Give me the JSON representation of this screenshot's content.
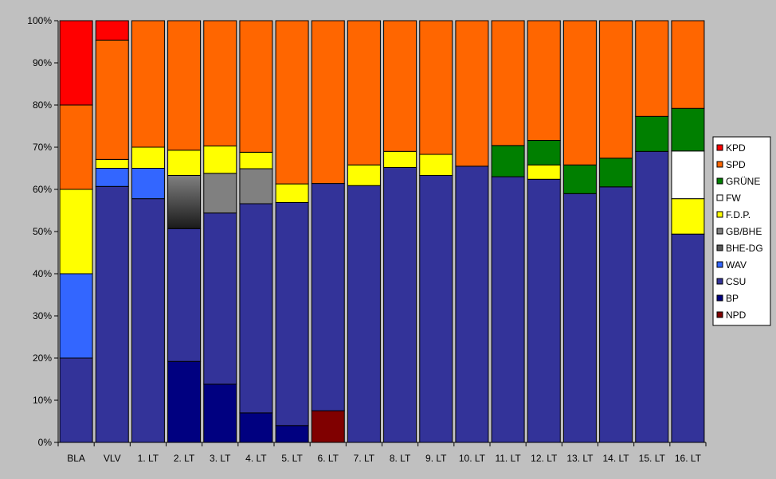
{
  "chart_data": {
    "type": "bar",
    "stacked": true,
    "normalized_percent": true,
    "title": "",
    "xlabel": "",
    "ylabel": "",
    "ylim": [
      0,
      100
    ],
    "yticks": [
      "0%",
      "10%",
      "20%",
      "30%",
      "40%",
      "50%",
      "60%",
      "70%",
      "80%",
      "90%",
      "100%"
    ],
    "grid": false,
    "legend_position": "right",
    "categories": [
      "BLA",
      "VLV",
      "1. LT",
      "2. LT",
      "3. LT",
      "4. LT",
      "5. LT",
      "6. LT",
      "7. LT",
      "8. LT",
      "9. LT",
      "10. LT",
      "11. LT",
      "12. LT",
      "13. LT",
      "14. LT",
      "15. LT",
      "16. LT"
    ],
    "series": [
      {
        "name": "NPD",
        "color": "#800000",
        "values": [
          0,
          0,
          0,
          0,
          0,
          0,
          0,
          7.5,
          0,
          0,
          0,
          0,
          0,
          0,
          0,
          0,
          0,
          0
        ]
      },
      {
        "name": "BP",
        "color": "#000080",
        "values": [
          0,
          0,
          0,
          19.2,
          13.8,
          7.0,
          4.0,
          0,
          0,
          0,
          0,
          0,
          0,
          0,
          0,
          0,
          0,
          0
        ]
      },
      {
        "name": "CSU",
        "color": "#333399",
        "values": [
          20.0,
          60.7,
          57.8,
          31.5,
          40.6,
          49.6,
          52.9,
          53.9,
          60.9,
          65.2,
          63.3,
          65.5,
          63.0,
          62.4,
          59.0,
          60.6,
          69.0,
          49.4
        ]
      },
      {
        "name": "WAV",
        "color": "#3366ff",
        "values": [
          20.0,
          4.3,
          7.2,
          0,
          0,
          0,
          0,
          0,
          0,
          0,
          0,
          0,
          0,
          0,
          0,
          0,
          0,
          0
        ]
      },
      {
        "name": "BHE-DG",
        "color": "#595959",
        "values": [
          0,
          0,
          0,
          12.6,
          0,
          0,
          0,
          0,
          0,
          0,
          0,
          0,
          0,
          0,
          0,
          0,
          0,
          0
        ]
      },
      {
        "name": "GB/BHE",
        "color": "#808080",
        "values": [
          0,
          0,
          0,
          0,
          9.4,
          8.3,
          0,
          0,
          0,
          0,
          0,
          0,
          0,
          0,
          0,
          0,
          0,
          0
        ]
      },
      {
        "name": "F.D.P.",
        "color": "#ffff00",
        "values": [
          20.0,
          2.1,
          5.0,
          6.0,
          6.5,
          3.9,
          4.4,
          0,
          4.9,
          3.8,
          5.0,
          0,
          0,
          3.4,
          0,
          0,
          0,
          8.4
        ]
      },
      {
        "name": "FW",
        "color": "#ffffff",
        "values": [
          0,
          0,
          0,
          0,
          0,
          0,
          0,
          0,
          0,
          0,
          0,
          0,
          0,
          0,
          0,
          0,
          0,
          11.3
        ]
      },
      {
        "name": "GRÜNE",
        "color": "#007f00",
        "values": [
          0,
          0,
          0,
          0,
          0,
          0,
          0,
          0,
          0,
          0,
          0,
          0,
          7.4,
          5.8,
          6.8,
          6.8,
          8.3,
          10.1
        ]
      },
      {
        "name": "SPD",
        "color": "#ff6600",
        "values": [
          20.0,
          28.3,
          30.0,
          30.7,
          29.7,
          31.2,
          38.7,
          38.6,
          34.2,
          31.0,
          31.7,
          34.5,
          29.6,
          28.4,
          34.2,
          32.6,
          22.7,
          20.8
        ]
      },
      {
        "name": "KPD",
        "color": "#ff0000",
        "values": [
          20.0,
          4.6,
          0,
          0,
          0,
          0,
          0,
          0,
          0,
          0,
          0,
          0,
          0,
          0,
          0,
          0,
          0,
          0
        ]
      }
    ],
    "legend_order": [
      "KPD",
      "SPD",
      "GRÜNE",
      "FW",
      "F.D.P.",
      "GB/BHE",
      "BHE-DG",
      "WAV",
      "CSU",
      "BP",
      "NPD"
    ]
  }
}
